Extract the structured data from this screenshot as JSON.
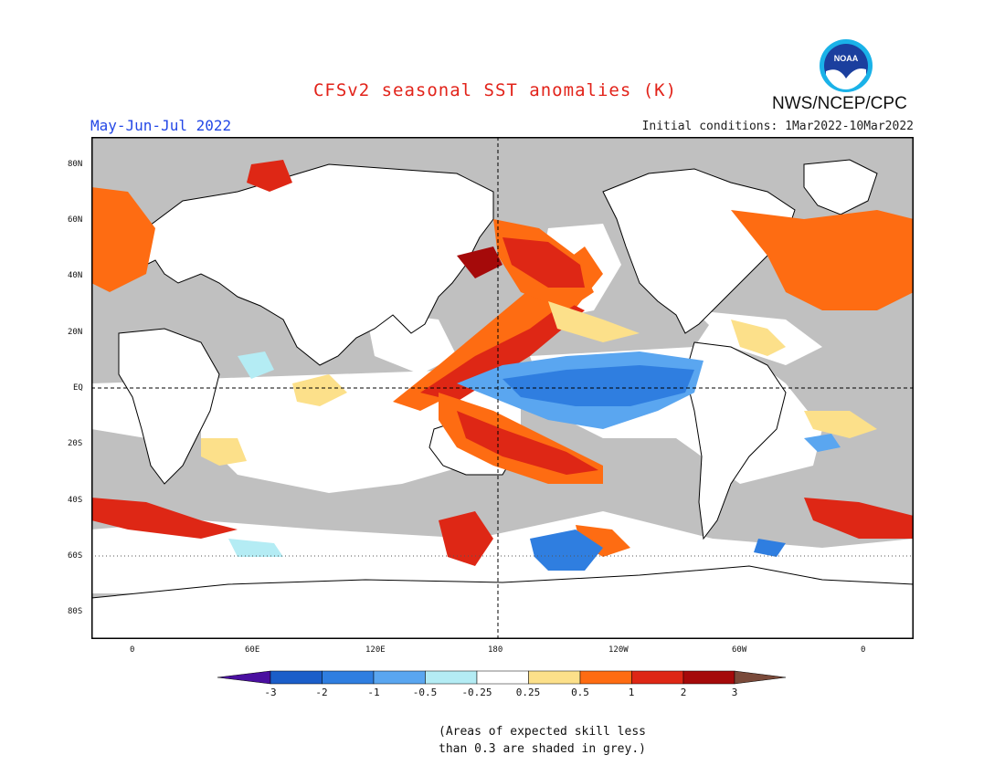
{
  "title": "CFSv2 seasonal SST anomalies (K)",
  "agency": "NWS/NCEP/CPC",
  "logo_text": "NOAA",
  "season": "May-Jun-Jul 2022",
  "initial_conditions": "Initial conditions: 1Mar2022-10Mar2022",
  "lat_labels": [
    "80N",
    "60N",
    "40N",
    "20N",
    "EQ",
    "20S",
    "40S",
    "60S",
    "80S"
  ],
  "lon_labels": [
    "0",
    "60E",
    "120E",
    "180",
    "120W",
    "60W",
    "0"
  ],
  "colorbar": {
    "levels": [
      "-3",
      "-2",
      "-1",
      "-0.5",
      "-0.25",
      "0.25",
      "0.5",
      "1",
      "2",
      "3"
    ],
    "colors": [
      "#4a0fa0",
      "#1b5ec9",
      "#2f7ee0",
      "#5aa6f0",
      "#b4ecf4",
      "#ffffff",
      "#fce08a",
      "#fe6c12",
      "#de2715",
      "#a50a0a",
      "#7a4a3a"
    ]
  },
  "note_lines": [
    "(Areas of expected skill less",
    "than 0.3 are shaded in grey.)"
  ],
  "map_colors": {
    "grey": "#c0c0c0",
    "land": "#ffffff",
    "coast": "#000000"
  }
}
